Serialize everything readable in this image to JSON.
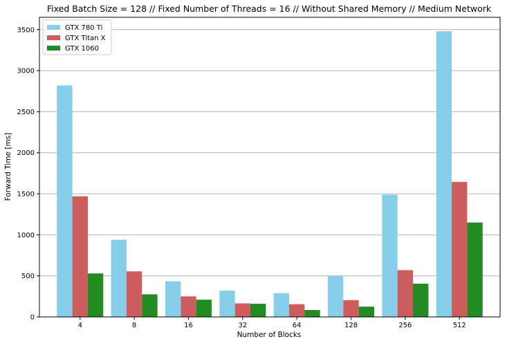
{
  "chart_data": {
    "type": "bar",
    "title": "Fixed Batch Size = 128 // Fixed Number of Threads = 16 // Without Shared Memory // Medium Network",
    "xlabel": "Number of Blocks",
    "ylabel": "Forward Time [ms]",
    "categories": [
      "4",
      "8",
      "16",
      "32",
      "64",
      "128",
      "256",
      "512"
    ],
    "ylim": [
      0,
      3650
    ],
    "yticks": [
      0,
      500,
      1000,
      1500,
      2000,
      2500,
      3000,
      3500
    ],
    "grid": "horizontal",
    "legend_position": "top-left",
    "series": [
      {
        "name": "GTX 780 Ti",
        "color": "#87ceeb",
        "values": [
          2820,
          940,
          435,
          320,
          290,
          500,
          1490,
          3480
        ]
      },
      {
        "name": "GTX Titan X",
        "color": "#cd5c5c",
        "values": [
          1470,
          555,
          250,
          165,
          155,
          205,
          570,
          1645
        ]
      },
      {
        "name": "GTX 1060",
        "color": "#228b22",
        "values": [
          530,
          275,
          210,
          160,
          85,
          125,
          405,
          1150
        ]
      }
    ]
  }
}
